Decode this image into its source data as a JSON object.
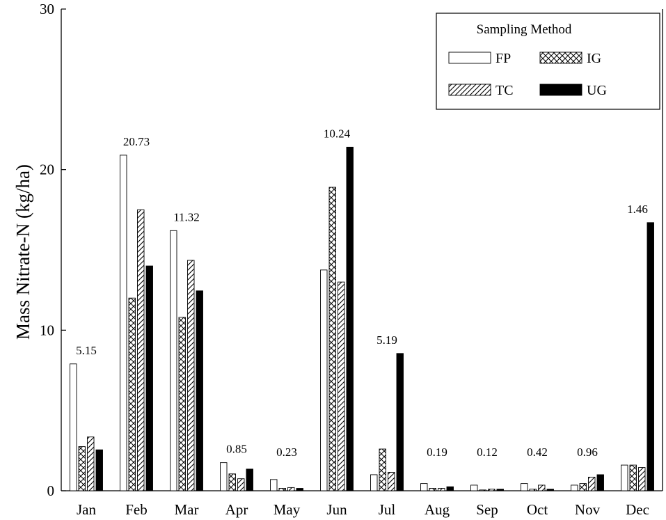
{
  "chart_data": {
    "type": "bar",
    "xlabel": "",
    "ylabel": "Mass Nitrate-N (kg/ha)",
    "ylim": [
      0,
      30
    ],
    "yticks": [
      0,
      10,
      20,
      30
    ],
    "grid": false,
    "legend": {
      "title": "Sampling Method",
      "placement": "top-right"
    },
    "categories": [
      "Jan",
      "Feb",
      "Mar",
      "Apr",
      "May",
      "Jun",
      "Jul",
      "Aug",
      "Sep",
      "Oct",
      "Nov",
      "Dec"
    ],
    "series": [
      {
        "name": "FP",
        "pattern": "empty",
        "values": [
          7.9,
          20.9,
          16.2,
          1.75,
          0.7,
          13.75,
          1.0,
          0.45,
          0.35,
          0.45,
          0.35,
          1.6
        ]
      },
      {
        "name": "IG",
        "pattern": "crosshatch",
        "values": [
          2.75,
          12.0,
          10.8,
          1.05,
          0.15,
          18.9,
          2.6,
          0.15,
          0.05,
          0.1,
          0.45,
          1.6
        ]
      },
      {
        "name": "TC",
        "pattern": "diagonal",
        "values": [
          3.35,
          17.5,
          14.35,
          0.75,
          0.2,
          13.0,
          1.15,
          0.15,
          0.1,
          0.35,
          0.85,
          1.45
        ]
      },
      {
        "name": "UG",
        "pattern": "solid",
        "values": [
          2.55,
          14.0,
          12.45,
          1.35,
          0.15,
          21.4,
          8.55,
          0.25,
          0.1,
          0.1,
          1.0,
          16.7
        ]
      }
    ],
    "annotations": [
      {
        "category": "Jan",
        "text": "5.15"
      },
      {
        "category": "Feb",
        "text": "20.73"
      },
      {
        "category": "Mar",
        "text": "11.32"
      },
      {
        "category": "Apr",
        "text": "0.85"
      },
      {
        "category": "May",
        "text": "0.23"
      },
      {
        "category": "Jun",
        "text": "10.24"
      },
      {
        "category": "Jul",
        "text": "5.19"
      },
      {
        "category": "Aug",
        "text": "0.19"
      },
      {
        "category": "Sep",
        "text": "0.12"
      },
      {
        "category": "Oct",
        "text": "0.42"
      },
      {
        "category": "Nov",
        "text": "0.96"
      },
      {
        "category": "Dec",
        "text": "1.46"
      }
    ]
  }
}
